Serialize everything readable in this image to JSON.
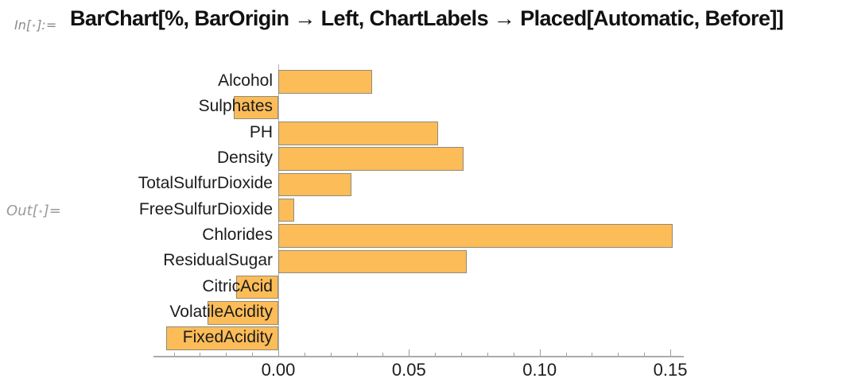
{
  "notebook": {
    "in_prefix": "In[",
    "in_bullet": "•",
    "in_suffix": "]:=",
    "input_code": "BarChart[%, BarOrigin → Left, ChartLabels → Placed[Automatic, Before]]",
    "out_prefix": "Out[",
    "out_bullet": "•",
    "out_suffix": "]="
  },
  "chart_data": {
    "type": "bar",
    "orientation": "horizontal",
    "bar_origin": "Left",
    "categories": [
      "Alcohol",
      "Sulphates",
      "PH",
      "Density",
      "TotalSulfurDioxide",
      "FreeSulfurDioxide",
      "Chlorides",
      "ResidualSugar",
      "CitricAcid",
      "VolatileAcidity",
      "FixedAcidity"
    ],
    "values": [
      0.036,
      -0.017,
      0.061,
      0.071,
      0.028,
      0.006,
      0.151,
      0.072,
      -0.016,
      -0.027,
      -0.043
    ],
    "xticks": [
      0.0,
      0.05,
      0.1,
      0.15
    ],
    "xtick_labels": [
      "0.00",
      "0.05",
      "0.10",
      "0.15"
    ],
    "minor_tick_step": 0.01,
    "xlim": [
      -0.048,
      0.155
    ],
    "title": "",
    "xlabel": "",
    "ylabel": "",
    "grid": false,
    "legend": false,
    "bar_color": "#fcbc58",
    "bar_edge_color": "#8f8b7a",
    "axis_color": "#ababab"
  }
}
